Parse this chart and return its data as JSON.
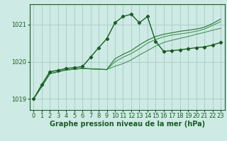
{
  "title": "Graphe pression niveau de la mer (hPa)",
  "background_color": "#ceeae4",
  "grid_color": "#aacfc8",
  "line_color_dark": "#1a5c28",
  "line_color_mid": "#2d7a3a",
  "line_color_light": "#4d9960",
  "xlim": [
    -0.5,
    23.5
  ],
  "ylim": [
    1018.7,
    1021.55
  ],
  "yticks": [
    1019,
    1020,
    1021
  ],
  "xticks": [
    0,
    1,
    2,
    3,
    4,
    5,
    6,
    7,
    8,
    9,
    10,
    11,
    12,
    13,
    14,
    15,
    16,
    17,
    18,
    19,
    20,
    21,
    22,
    23
  ],
  "series_main_x": [
    0,
    1,
    2,
    3,
    4,
    5,
    6,
    7,
    8,
    9,
    10,
    11,
    12,
    13,
    14,
    15,
    16,
    17,
    18,
    19,
    20,
    21,
    22,
    23
  ],
  "series_main": [
    1019.0,
    1019.38,
    1019.73,
    1019.77,
    1019.82,
    1019.84,
    1019.87,
    1020.12,
    1020.38,
    1020.62,
    1021.05,
    1021.22,
    1021.28,
    1021.05,
    1021.22,
    1020.55,
    1020.28,
    1020.3,
    1020.32,
    1020.35,
    1020.38,
    1020.4,
    1020.45,
    1020.52
  ],
  "series_band1": [
    1019.0,
    1019.33,
    1019.68,
    1019.73,
    1019.78,
    1019.8,
    1019.82,
    1019.81,
    1019.8,
    1019.79,
    1019.88,
    1019.95,
    1020.05,
    1020.18,
    1020.3,
    1020.42,
    1020.52,
    1020.58,
    1020.63,
    1020.68,
    1020.74,
    1020.79,
    1020.85,
    1020.9
  ],
  "series_band2": [
    1019.0,
    1019.33,
    1019.68,
    1019.73,
    1019.78,
    1019.8,
    1019.82,
    1019.81,
    1019.8,
    1019.79,
    1020.0,
    1020.12,
    1020.22,
    1020.35,
    1020.5,
    1020.6,
    1020.67,
    1020.72,
    1020.75,
    1020.78,
    1020.82,
    1020.88,
    1020.98,
    1021.08
  ],
  "series_band3": [
    1019.0,
    1019.33,
    1019.68,
    1019.73,
    1019.78,
    1019.8,
    1019.82,
    1019.81,
    1019.8,
    1019.79,
    1020.08,
    1020.2,
    1020.3,
    1020.45,
    1020.58,
    1020.68,
    1020.74,
    1020.78,
    1020.82,
    1020.85,
    1020.88,
    1020.93,
    1021.03,
    1021.15
  ],
  "xlabel_fontsize": 7.0,
  "tick_fontsize": 6.0,
  "marker": "D",
  "markersize": 2.2
}
